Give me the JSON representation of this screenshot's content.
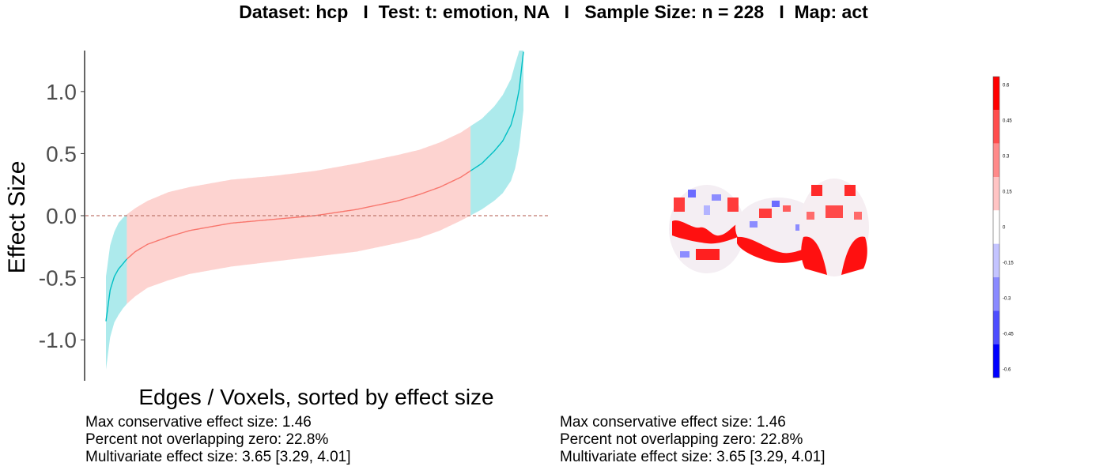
{
  "title": "Dataset: hcp   I  Test: t: emotion, NA   I   Sample Size: n = 228   I  Map: act",
  "chart_data": {
    "type": "area",
    "xlabel": "Edges / Voxels, sorted by effect size",
    "ylabel": "Effect Size",
    "yticks": [
      1.0,
      0.5,
      0.0,
      -0.5,
      -1.0
    ],
    "ytick_labels": [
      "1.0",
      "0.5",
      "0.0",
      "-0.5",
      "-1.0"
    ],
    "ylim": [
      -1.33,
      1.33
    ],
    "xlim": [
      0,
      1
    ],
    "reference_line": 0,
    "colors": {
      "overlapping_zero": "#F8766D",
      "not_overlapping_zero": "#00BFC4"
    },
    "series": [
      {
        "x": [
          0.0,
          0.01,
          0.02,
          0.03,
          0.04,
          0.05,
          0.07,
          0.1,
          0.15,
          0.2,
          0.3,
          0.4,
          0.5,
          0.6,
          0.7,
          0.75,
          0.8,
          0.85,
          0.9,
          0.93,
          0.95,
          0.97,
          0.98,
          0.99,
          1.0
        ],
        "estimate": [
          -0.85,
          -0.6,
          -0.49,
          -0.43,
          -0.39,
          -0.35,
          -0.29,
          -0.23,
          -0.17,
          -0.12,
          -0.06,
          -0.03,
          0.0,
          0.05,
          0.12,
          0.17,
          0.23,
          0.31,
          0.42,
          0.52,
          0.6,
          0.73,
          0.85,
          1.02,
          1.32
        ],
        "lower": [
          -1.24,
          -0.98,
          -0.86,
          -0.8,
          -0.75,
          -0.71,
          -0.65,
          -0.58,
          -0.52,
          -0.47,
          -0.41,
          -0.37,
          -0.33,
          -0.29,
          -0.22,
          -0.18,
          -0.12,
          -0.04,
          0.05,
          0.12,
          0.18,
          0.28,
          0.38,
          0.55,
          0.85
        ],
        "upper": [
          -0.49,
          -0.24,
          -0.13,
          -0.06,
          -0.02,
          0.01,
          0.06,
          0.12,
          0.19,
          0.23,
          0.29,
          0.32,
          0.36,
          0.42,
          0.49,
          0.53,
          0.59,
          0.67,
          0.78,
          0.88,
          0.97,
          1.1,
          1.22,
          1.33,
          1.33
        ]
      }
    ]
  },
  "colorbar": {
    "tick_labels": [
      "0.6",
      "0.45",
      "0.3",
      "0.15",
      "0",
      "-0.15",
      "-0.3",
      "-0.45",
      "-0.6"
    ],
    "colors": [
      "#ff0000",
      "#ff4d4d",
      "#ff8a8a",
      "#ffc4c4",
      "#ffffff",
      "#c4c4ff",
      "#8a8aff",
      "#4d4dff",
      "#0000ff"
    ]
  },
  "stats_left": {
    "max_conservative": "Max conservative effect size: 1.46",
    "percent_not_overlapping": "Percent not overlapping zero: 22.8%",
    "multivariate": "Multivariate effect size: 3.65 [3.29, 4.01]"
  },
  "stats_right": {
    "max_conservative": "Max conservative effect size: 1.46",
    "percent_not_overlapping": "Percent not overlapping zero: 22.8%",
    "multivariate": "Multivariate effect size: 3.65 [3.29, 4.01]"
  }
}
